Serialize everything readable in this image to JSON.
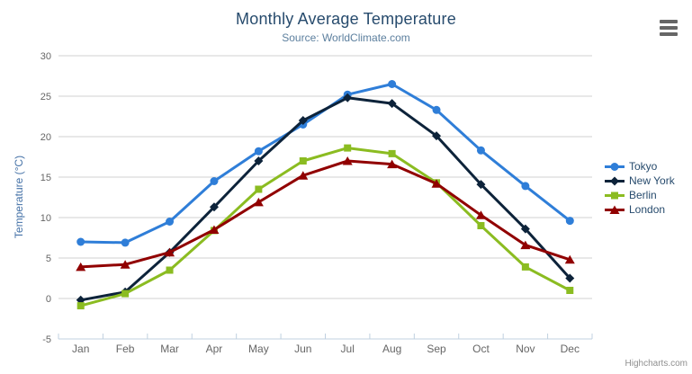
{
  "header": {
    "title": "Monthly Average Temperature",
    "subtitle": "Source: WorldClimate.com"
  },
  "icons": {
    "menu": "hamburger-icon"
  },
  "credits": {
    "label": "Highcharts.com"
  },
  "chart_data": {
    "type": "line",
    "title": "Monthly Average Temperature",
    "subtitle": "Source: WorldClimate.com",
    "categories": [
      "Jan",
      "Feb",
      "Mar",
      "Apr",
      "May",
      "Jun",
      "Jul",
      "Aug",
      "Sep",
      "Oct",
      "Nov",
      "Dec"
    ],
    "xlabel": "",
    "ylabel": "Temperature (°C)",
    "ylim": [
      -5,
      30
    ],
    "ytick_step": 5,
    "yticks": [
      -5,
      0,
      5,
      10,
      15,
      20,
      25,
      30
    ],
    "grid": "horizontal",
    "legend_position": "right",
    "series": [
      {
        "name": "Tokyo",
        "color": "#2f7ed8",
        "marker": "circle",
        "values": [
          7.0,
          6.9,
          9.5,
          14.5,
          18.2,
          21.5,
          25.2,
          26.5,
          23.3,
          18.3,
          13.9,
          9.6
        ]
      },
      {
        "name": "New York",
        "color": "#0d233a",
        "marker": "diamond",
        "values": [
          -0.2,
          0.8,
          5.7,
          11.3,
          17.0,
          22.0,
          24.8,
          24.1,
          20.1,
          14.1,
          8.6,
          2.5
        ]
      },
      {
        "name": "Berlin",
        "color": "#8bbc21",
        "marker": "square",
        "values": [
          -0.9,
          0.6,
          3.5,
          8.4,
          13.5,
          17.0,
          18.6,
          17.9,
          14.3,
          9.0,
          3.9,
          1.0
        ]
      },
      {
        "name": "London",
        "color": "#910000",
        "marker": "triangle",
        "values": [
          3.9,
          4.2,
          5.7,
          8.5,
          11.9,
          15.2,
          17.0,
          16.6,
          14.2,
          10.3,
          6.6,
          4.8
        ]
      }
    ]
  },
  "colors": {
    "title": "#274b6d",
    "subtitle": "#5c7f9e",
    "y_axis_title": "#4572a7",
    "axis_labels": "#666666",
    "grid_line": "#d0d0d0",
    "axis_line": "#c0d0e0",
    "legend_text": "#274b6d",
    "credits_text": "#8f8f8f",
    "menu_icon": "#666666",
    "background": "#ffffff"
  }
}
